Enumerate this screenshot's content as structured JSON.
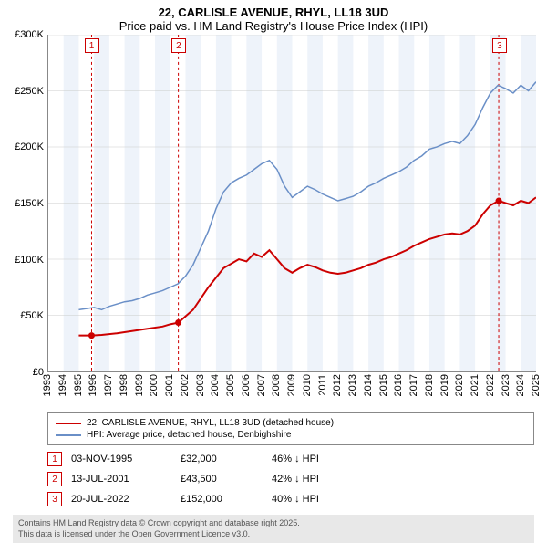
{
  "title": {
    "line1": "22, CARLISLE AVENUE, RHYL, LL18 3UD",
    "line2": "Price paid vs. HM Land Registry's House Price Index (HPI)"
  },
  "chart": {
    "type": "line",
    "background_color": "#ffffff",
    "alt_band_color": "#eef3fa",
    "grid_color": "#cccccc",
    "axis_color": "#888888",
    "label_fontsize": 11,
    "x_years": [
      1993,
      1994,
      1995,
      1996,
      1997,
      1998,
      1999,
      2000,
      2001,
      2002,
      2003,
      2004,
      2005,
      2006,
      2007,
      2008,
      2009,
      2010,
      2011,
      2012,
      2013,
      2014,
      2015,
      2016,
      2017,
      2018,
      2019,
      2020,
      2021,
      2022,
      2023,
      2024,
      2025
    ],
    "y_label_prefix": "£",
    "y_label_suffix": "K",
    "ylim": [
      0,
      300000
    ],
    "ytick_step": 50000,
    "series": {
      "price_paid": {
        "label": "22, CARLISLE AVENUE, RHYL, LL18 3UD (detached house)",
        "color": "#cc0000",
        "line_width": 2,
        "points": [
          [
            1995.0,
            32000
          ],
          [
            1995.84,
            32000
          ],
          [
            1996.5,
            32500
          ],
          [
            1997.5,
            34000
          ],
          [
            1998.5,
            36000
          ],
          [
            1999.5,
            38000
          ],
          [
            2000.5,
            40000
          ],
          [
            2001.0,
            42000
          ],
          [
            2001.53,
            43500
          ],
          [
            2002.5,
            55000
          ],
          [
            2003.5,
            75000
          ],
          [
            2004.5,
            92000
          ],
          [
            2005.5,
            100000
          ],
          [
            2006.0,
            98000
          ],
          [
            2006.5,
            105000
          ],
          [
            2007.0,
            102000
          ],
          [
            2007.5,
            108000
          ],
          [
            2008.0,
            100000
          ],
          [
            2008.5,
            92000
          ],
          [
            2009.0,
            88000
          ],
          [
            2009.5,
            92000
          ],
          [
            2010.0,
            95000
          ],
          [
            2010.5,
            93000
          ],
          [
            2011.0,
            90000
          ],
          [
            2011.5,
            88000
          ],
          [
            2012.0,
            87000
          ],
          [
            2012.5,
            88000
          ],
          [
            2013.0,
            90000
          ],
          [
            2013.5,
            92000
          ],
          [
            2014.0,
            95000
          ],
          [
            2014.5,
            97000
          ],
          [
            2015.0,
            100000
          ],
          [
            2015.5,
            102000
          ],
          [
            2016.0,
            105000
          ],
          [
            2016.5,
            108000
          ],
          [
            2017.0,
            112000
          ],
          [
            2017.5,
            115000
          ],
          [
            2018.0,
            118000
          ],
          [
            2018.5,
            120000
          ],
          [
            2019.0,
            122000
          ],
          [
            2019.5,
            123000
          ],
          [
            2020.0,
            122000
          ],
          [
            2020.5,
            125000
          ],
          [
            2021.0,
            130000
          ],
          [
            2021.5,
            140000
          ],
          [
            2022.0,
            148000
          ],
          [
            2022.55,
            152000
          ],
          [
            2023.0,
            150000
          ],
          [
            2023.5,
            148000
          ],
          [
            2024.0,
            152000
          ],
          [
            2024.5,
            150000
          ],
          [
            2025.0,
            155000
          ]
        ]
      },
      "hpi": {
        "label": "HPI: Average price, detached house, Denbighshire",
        "color": "#6a8fc7",
        "line_width": 1.5,
        "points": [
          [
            1995.0,
            55000
          ],
          [
            1995.5,
            56000
          ],
          [
            1996.0,
            57000
          ],
          [
            1996.5,
            55000
          ],
          [
            1997.0,
            58000
          ],
          [
            1997.5,
            60000
          ],
          [
            1998.0,
            62000
          ],
          [
            1998.5,
            63000
          ],
          [
            1999.0,
            65000
          ],
          [
            1999.5,
            68000
          ],
          [
            2000.0,
            70000
          ],
          [
            2000.5,
            72000
          ],
          [
            2001.0,
            75000
          ],
          [
            2001.5,
            78000
          ],
          [
            2002.0,
            85000
          ],
          [
            2002.5,
            95000
          ],
          [
            2003.0,
            110000
          ],
          [
            2003.5,
            125000
          ],
          [
            2004.0,
            145000
          ],
          [
            2004.5,
            160000
          ],
          [
            2005.0,
            168000
          ],
          [
            2005.5,
            172000
          ],
          [
            2006.0,
            175000
          ],
          [
            2006.5,
            180000
          ],
          [
            2007.0,
            185000
          ],
          [
            2007.5,
            188000
          ],
          [
            2008.0,
            180000
          ],
          [
            2008.5,
            165000
          ],
          [
            2009.0,
            155000
          ],
          [
            2009.5,
            160000
          ],
          [
            2010.0,
            165000
          ],
          [
            2010.5,
            162000
          ],
          [
            2011.0,
            158000
          ],
          [
            2011.5,
            155000
          ],
          [
            2012.0,
            152000
          ],
          [
            2012.5,
            154000
          ],
          [
            2013.0,
            156000
          ],
          [
            2013.5,
            160000
          ],
          [
            2014.0,
            165000
          ],
          [
            2014.5,
            168000
          ],
          [
            2015.0,
            172000
          ],
          [
            2015.5,
            175000
          ],
          [
            2016.0,
            178000
          ],
          [
            2016.5,
            182000
          ],
          [
            2017.0,
            188000
          ],
          [
            2017.5,
            192000
          ],
          [
            2018.0,
            198000
          ],
          [
            2018.5,
            200000
          ],
          [
            2019.0,
            203000
          ],
          [
            2019.5,
            205000
          ],
          [
            2020.0,
            203000
          ],
          [
            2020.5,
            210000
          ],
          [
            2021.0,
            220000
          ],
          [
            2021.5,
            235000
          ],
          [
            2022.0,
            248000
          ],
          [
            2022.5,
            255000
          ],
          [
            2023.0,
            252000
          ],
          [
            2023.5,
            248000
          ],
          [
            2024.0,
            255000
          ],
          [
            2024.5,
            250000
          ],
          [
            2025.0,
            258000
          ]
        ]
      }
    },
    "sale_markers": [
      {
        "num": "1",
        "year": 1995.84,
        "price": 32000
      },
      {
        "num": "2",
        "year": 2001.53,
        "price": 43500
      },
      {
        "num": "3",
        "year": 2022.55,
        "price": 152000
      }
    ],
    "marker_line_color": "#cc0000",
    "marker_dot_color": "#cc0000"
  },
  "legend": {
    "items": [
      {
        "color": "#cc0000",
        "label": "22, CARLISLE AVENUE, RHYL, LL18 3UD (detached house)"
      },
      {
        "color": "#6a8fc7",
        "label": "HPI: Average price, detached house, Denbighshire"
      }
    ]
  },
  "table": {
    "rows": [
      {
        "num": "1",
        "date": "03-NOV-1995",
        "price": "£32,000",
        "diff": "46% ↓ HPI"
      },
      {
        "num": "2",
        "date": "13-JUL-2001",
        "price": "£43,500",
        "diff": "42% ↓ HPI"
      },
      {
        "num": "3",
        "date": "20-JUL-2022",
        "price": "£152,000",
        "diff": "40% ↓ HPI"
      }
    ]
  },
  "footer": {
    "line1": "Contains HM Land Registry data © Crown copyright and database right 2025.",
    "line2": "This data is licensed under the Open Government Licence v3.0."
  }
}
